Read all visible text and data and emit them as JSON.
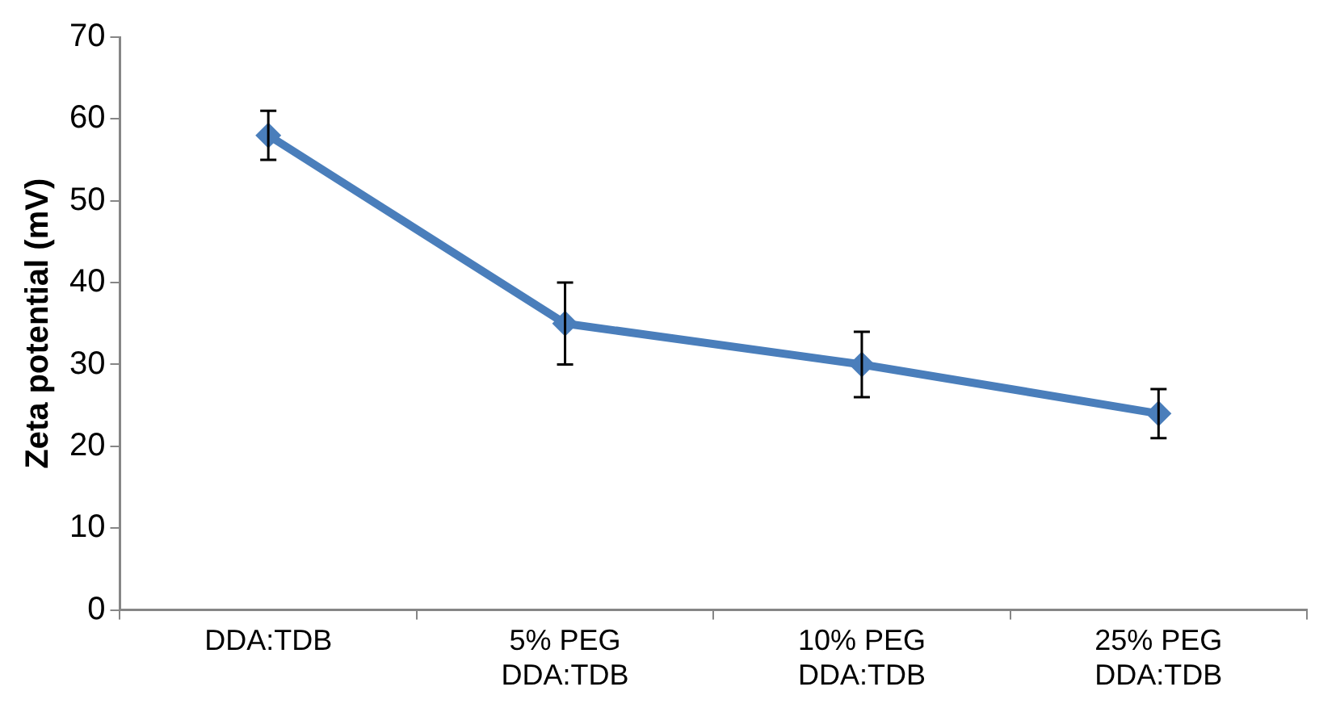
{
  "chart_data": {
    "type": "line",
    "ylabel": "Zeta potential (mV)",
    "categories": [
      "DDA:TDB",
      "5% PEG\nDDA:TDB",
      "10% PEG\nDDA:TDB",
      "25% PEG\nDDA:TDB"
    ],
    "series": [
      {
        "color": "#4a7ebb",
        "values": [
          58,
          35,
          30,
          24
        ],
        "errors": [
          3,
          5,
          4,
          3
        ]
      }
    ],
    "ylim": [
      0,
      70
    ],
    "yticks": [
      0,
      10,
      20,
      30,
      40,
      50,
      60,
      70
    ],
    "grid": false,
    "legend": false,
    "marker": "diamond",
    "line_style": "solid"
  }
}
